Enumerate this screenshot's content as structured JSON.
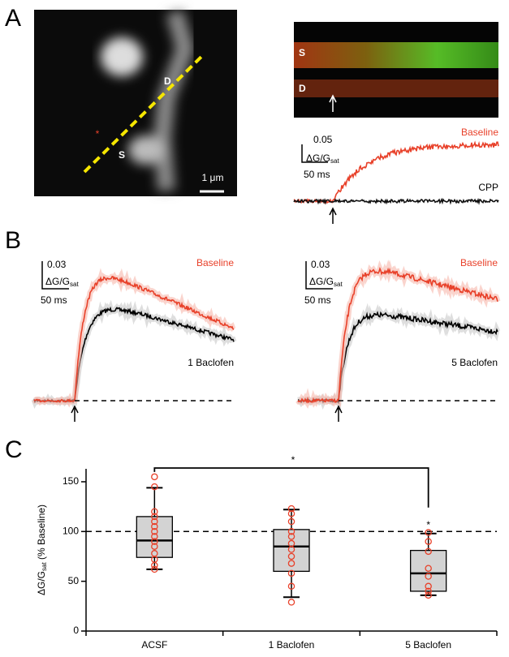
{
  "panels": {
    "a": {
      "letter": "A",
      "image_labels": [
        "D",
        "S"
      ],
      "scale_bar": "1 μm",
      "kymo_labels": [
        "S",
        "D"
      ],
      "trace_scale": {
        "amplitude": "0.05",
        "unit_main": "ΔG/G",
        "unit_sub": "sat",
        "time": "50 ms"
      },
      "trace_names": [
        "Baseline",
        "CPP"
      ]
    },
    "b": {
      "letter": "B",
      "left": {
        "amplitude": "0.03",
        "unit_main": "ΔG/G",
        "unit_sub": "sat",
        "time": "50 ms",
        "names": [
          "Baseline",
          "1 Baclofen"
        ]
      },
      "right": {
        "amplitude": "0.03",
        "unit_main": "ΔG/G",
        "unit_sub": "sat",
        "time": "50 ms",
        "names": [
          "Baseline",
          "5 Baclofen"
        ]
      }
    },
    "c": {
      "letter": "C"
    }
  },
  "chart_data": {
    "type": "box",
    "ylabel_main": "ΔG/G",
    "ylabel_sub": "sat",
    "ylabel_rest": " (% Baseline)",
    "categories": [
      "ACSF",
      "1 Baclofen",
      "5 Baclofen"
    ],
    "ylim": [
      0,
      163
    ],
    "yticks": [
      0,
      50,
      100,
      150
    ],
    "reference_line": 100,
    "box_color": "#d3d3d3",
    "point_color": "#e8412a",
    "boxes": [
      {
        "whisker_low": 62,
        "q1": 74,
        "median": 91,
        "q3": 115,
        "whisker_high": 144,
        "points": [
          155,
          145,
          120,
          115,
          110,
          105,
          100,
          95,
          90,
          85,
          78,
          72,
          66,
          62
        ]
      },
      {
        "whisker_low": 34,
        "q1": 60,
        "median": 85,
        "q3": 102,
        "whisker_high": 122,
        "points": [
          123,
          118,
          110,
          100,
          95,
          88,
          82,
          75,
          68,
          58,
          45,
          29
        ]
      },
      {
        "whisker_low": 36,
        "q1": 40,
        "median": 58,
        "q3": 81,
        "whisker_high": 98,
        "points": [
          99,
          90,
          80,
          63,
          55,
          45,
          40,
          36
        ]
      }
    ],
    "significance": [
      "*",
      "*"
    ]
  }
}
